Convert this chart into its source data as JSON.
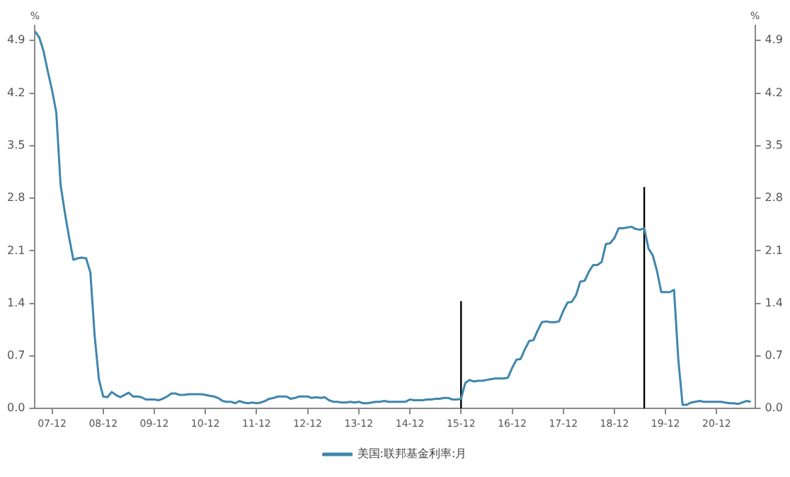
{
  "chart_data": {
    "type": "line",
    "ylabel": "%",
    "y2label": "%",
    "xlim": [
      "2007-08",
      "2021-09"
    ],
    "xticks": [
      {
        "value": "2007-12",
        "label": "07-12"
      },
      {
        "value": "2008-12",
        "label": "08-12"
      },
      {
        "value": "2009-12",
        "label": "09-12"
      },
      {
        "value": "2010-12",
        "label": "10-12"
      },
      {
        "value": "2011-12",
        "label": "11-12"
      },
      {
        "value": "2012-12",
        "label": "12-12"
      },
      {
        "value": "2013-12",
        "label": "13-12"
      },
      {
        "value": "2014-12",
        "label": "14-12"
      },
      {
        "value": "2015-12",
        "label": "15-12"
      },
      {
        "value": "2016-12",
        "label": "16-12"
      },
      {
        "value": "2017-12",
        "label": "17-12"
      },
      {
        "value": "2018-12",
        "label": "18-12"
      },
      {
        "value": "2019-12",
        "label": "19-12"
      },
      {
        "value": "2020-12",
        "label": "20-12"
      }
    ],
    "ylim": [
      0,
      5.1
    ],
    "yticks": [
      {
        "value": 0,
        "label": "0.0"
      },
      0.7,
      1.4,
      2.1,
      2.8,
      3.5,
      4.2,
      4.9
    ],
    "y2lim": [
      0,
      5.1
    ],
    "y2ticks": [
      {
        "value": 0,
        "label": "0.0"
      },
      0.7,
      1.4,
      2.1,
      2.8,
      3.5,
      4.2,
      4.9
    ],
    "grid": false,
    "legend": "bottom",
    "marker": "none",
    "line_style": "solid",
    "x": [
      "2007-08",
      "2007-09",
      "2007-10",
      "2007-11",
      "2007-12",
      "2008-01",
      "2008-02",
      "2008-03",
      "2008-04",
      "2008-05",
      "2008-06",
      "2008-07",
      "2008-08",
      "2008-09",
      "2008-10",
      "2008-11",
      "2008-12",
      "2009-01",
      "2009-02",
      "2009-03",
      "2009-04",
      "2009-05",
      "2009-06",
      "2009-07",
      "2009-08",
      "2009-09",
      "2009-10",
      "2009-11",
      "2009-12",
      "2010-01",
      "2010-02",
      "2010-03",
      "2010-04",
      "2010-05",
      "2010-06",
      "2010-07",
      "2010-08",
      "2010-09",
      "2010-10",
      "2010-11",
      "2010-12",
      "2011-01",
      "2011-02",
      "2011-03",
      "2011-04",
      "2011-05",
      "2011-06",
      "2011-07",
      "2011-08",
      "2011-09",
      "2011-10",
      "2011-11",
      "2011-12",
      "2012-01",
      "2012-02",
      "2012-03",
      "2012-04",
      "2012-05",
      "2012-06",
      "2012-07",
      "2012-08",
      "2012-09",
      "2012-10",
      "2012-11",
      "2012-12",
      "2013-01",
      "2013-02",
      "2013-03",
      "2013-04",
      "2013-05",
      "2013-06",
      "2013-07",
      "2013-08",
      "2013-09",
      "2013-10",
      "2013-11",
      "2013-12",
      "2014-01",
      "2014-02",
      "2014-03",
      "2014-04",
      "2014-05",
      "2014-06",
      "2014-07",
      "2014-08",
      "2014-09",
      "2014-10",
      "2014-11",
      "2014-12",
      "2015-01",
      "2015-02",
      "2015-03",
      "2015-04",
      "2015-05",
      "2015-06",
      "2015-07",
      "2015-08",
      "2015-09",
      "2015-10",
      "2015-11",
      "2015-12",
      "2016-01",
      "2016-02",
      "2016-03",
      "2016-04",
      "2016-05",
      "2016-06",
      "2016-07",
      "2016-08",
      "2016-09",
      "2016-10",
      "2016-11",
      "2016-12",
      "2017-01",
      "2017-02",
      "2017-03",
      "2017-04",
      "2017-05",
      "2017-06",
      "2017-07",
      "2017-08",
      "2017-09",
      "2017-10",
      "2017-11",
      "2017-12",
      "2018-01",
      "2018-02",
      "2018-03",
      "2018-04",
      "2018-05",
      "2018-06",
      "2018-07",
      "2018-08",
      "2018-09",
      "2018-10",
      "2018-11",
      "2018-12",
      "2019-01",
      "2019-02",
      "2019-03",
      "2019-04",
      "2019-05",
      "2019-06",
      "2019-07",
      "2019-08",
      "2019-09",
      "2019-10",
      "2019-11",
      "2019-12",
      "2020-01",
      "2020-02",
      "2020-03",
      "2020-04",
      "2020-05",
      "2020-06",
      "2020-07",
      "2020-08",
      "2020-09",
      "2020-10",
      "2020-11",
      "2020-12",
      "2021-01",
      "2021-02",
      "2021-03",
      "2021-04",
      "2021-05",
      "2021-06",
      "2021-07",
      "2021-08"
    ],
    "series": [
      {
        "name": "美国:联邦基金利率:月",
        "color": "#3f86ad",
        "values": [
          5.02,
          4.94,
          4.76,
          4.49,
          4.24,
          3.94,
          2.98,
          2.61,
          2.28,
          1.98,
          2.0,
          2.01,
          2.0,
          1.81,
          0.97,
          0.39,
          0.16,
          0.15,
          0.22,
          0.18,
          0.15,
          0.18,
          0.21,
          0.16,
          0.16,
          0.15,
          0.12,
          0.12,
          0.12,
          0.11,
          0.13,
          0.16,
          0.2,
          0.2,
          0.18,
          0.18,
          0.19,
          0.19,
          0.19,
          0.19,
          0.18,
          0.17,
          0.16,
          0.14,
          0.1,
          0.09,
          0.09,
          0.07,
          0.1,
          0.08,
          0.07,
          0.08,
          0.07,
          0.08,
          0.1,
          0.13,
          0.14,
          0.16,
          0.16,
          0.16,
          0.13,
          0.14,
          0.16,
          0.16,
          0.16,
          0.14,
          0.15,
          0.14,
          0.15,
          0.11,
          0.09,
          0.09,
          0.08,
          0.08,
          0.09,
          0.08,
          0.09,
          0.07,
          0.07,
          0.08,
          0.09,
          0.09,
          0.1,
          0.09,
          0.09,
          0.09,
          0.09,
          0.09,
          0.12,
          0.11,
          0.11,
          0.11,
          0.12,
          0.12,
          0.13,
          0.13,
          0.14,
          0.14,
          0.12,
          0.12,
          0.13,
          0.34,
          0.38,
          0.36,
          0.37,
          0.37,
          0.38,
          0.39,
          0.4,
          0.4,
          0.4,
          0.41,
          0.54,
          0.65,
          0.66,
          0.79,
          0.9,
          0.91,
          1.04,
          1.15,
          1.16,
          1.15,
          1.15,
          1.16,
          1.3,
          1.41,
          1.42,
          1.51,
          1.69,
          1.7,
          1.82,
          1.91,
          1.91,
          1.95,
          2.19,
          2.2,
          2.27,
          2.4,
          2.4,
          2.41,
          2.42,
          2.39,
          2.38,
          2.4,
          2.13,
          2.04,
          1.83,
          1.55,
          1.55,
          1.55,
          1.58,
          0.65,
          0.05,
          0.05,
          0.08,
          0.09,
          0.1,
          0.09,
          0.09,
          0.09,
          0.09,
          0.09,
          0.08,
          0.07,
          0.07,
          0.06,
          0.08,
          0.1,
          0.09
        ]
      },
      {
        "type": "line",
        "color": "#000000",
        "x": [
          "2015-12",
          "2015-12"
        ],
        "values": [
          0,
          1.43
        ]
      },
      {
        "type": "line",
        "color": "#000000",
        "x": [
          "2019-07",
          "2019-07"
        ],
        "values": [
          0,
          2.95
        ]
      }
    ]
  }
}
